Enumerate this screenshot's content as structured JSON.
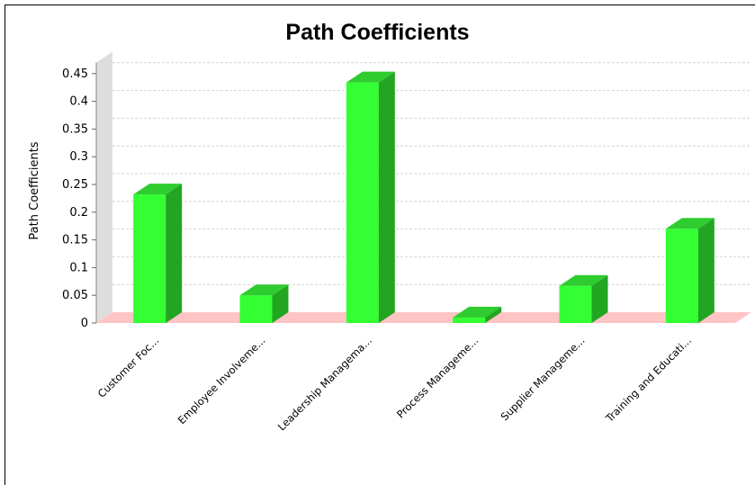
{
  "chart_data": {
    "type": "bar",
    "title": "Path Coefficients",
    "xlabel": "",
    "ylabel": "Path Coefficients",
    "categories": [
      "Customer Foc...",
      "Employee Involveme...",
      "Leadership Managema...",
      "Process Manageme...",
      "Supplier Manageme...",
      "Training and Educati..."
    ],
    "values": [
      0.232,
      0.05,
      0.434,
      0.01,
      0.067,
      0.17
    ],
    "ylim": [
      0,
      0.47
    ],
    "yticks": [
      "0",
      "0.05",
      "0.1",
      "0.15",
      "0.2",
      "0.25",
      "0.3",
      "0.35",
      "0.4",
      "0.45"
    ],
    "grid": true,
    "style": "3d",
    "colors": {
      "bar_front": "#33ff33",
      "bar_side": "#22a622",
      "bar_top": "#2fcc2f",
      "floor": "#ffc4c4",
      "wall": "#dddddd",
      "grid": "#d4d4d4"
    }
  }
}
